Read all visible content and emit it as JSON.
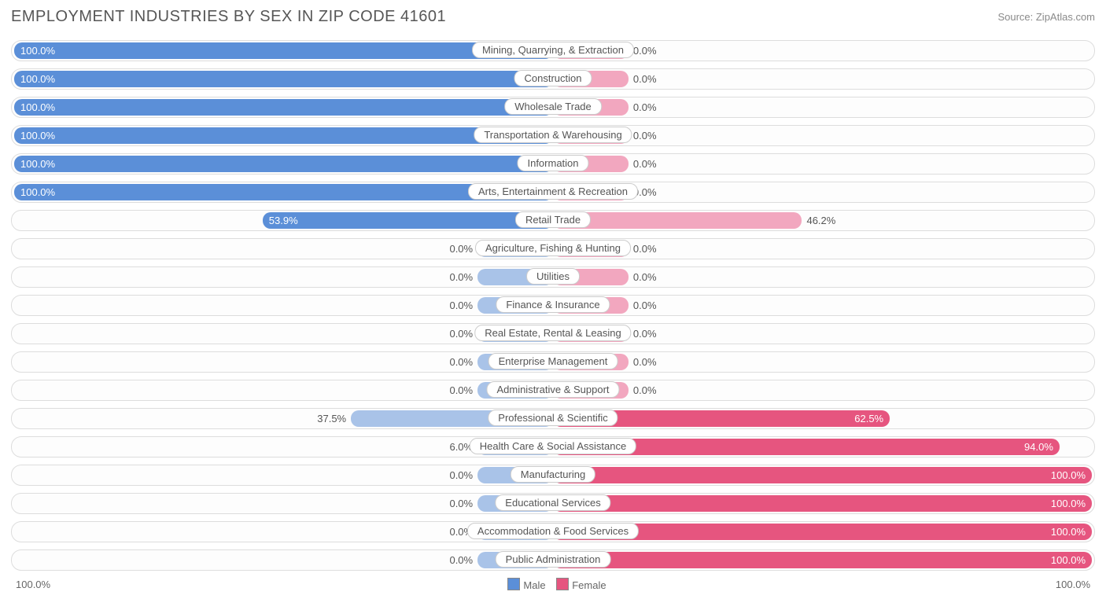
{
  "title": "EMPLOYMENT INDUSTRIES BY SEX IN ZIP CODE 41601",
  "source": "Source: ZipAtlas.com",
  "colors": {
    "male_fill": "#5b8fd8",
    "male_light": "#a9c3e8",
    "female_fill": "#e6557f",
    "female_light": "#f2a7bf",
    "row_border": "#dddddd",
    "text": "#555555",
    "title_text": "#565656",
    "bg": "#ffffff"
  },
  "axis": {
    "left": "100.0%",
    "right": "100.0%"
  },
  "legend": {
    "male": "Male",
    "female": "Female"
  },
  "min_bar_pct": 14,
  "rows": [
    {
      "label": "Mining, Quarrying, & Extraction",
      "male": 100.0,
      "female": 0.0
    },
    {
      "label": "Construction",
      "male": 100.0,
      "female": 0.0
    },
    {
      "label": "Wholesale Trade",
      "male": 100.0,
      "female": 0.0
    },
    {
      "label": "Transportation & Warehousing",
      "male": 100.0,
      "female": 0.0
    },
    {
      "label": "Information",
      "male": 100.0,
      "female": 0.0
    },
    {
      "label": "Arts, Entertainment & Recreation",
      "male": 100.0,
      "female": 0.0
    },
    {
      "label": "Retail Trade",
      "male": 53.9,
      "female": 46.2
    },
    {
      "label": "Agriculture, Fishing & Hunting",
      "male": 0.0,
      "female": 0.0
    },
    {
      "label": "Utilities",
      "male": 0.0,
      "female": 0.0
    },
    {
      "label": "Finance & Insurance",
      "male": 0.0,
      "female": 0.0
    },
    {
      "label": "Real Estate, Rental & Leasing",
      "male": 0.0,
      "female": 0.0
    },
    {
      "label": "Enterprise Management",
      "male": 0.0,
      "female": 0.0
    },
    {
      "label": "Administrative & Support",
      "male": 0.0,
      "female": 0.0
    },
    {
      "label": "Professional & Scientific",
      "male": 37.5,
      "female": 62.5
    },
    {
      "label": "Health Care & Social Assistance",
      "male": 6.0,
      "female": 94.0
    },
    {
      "label": "Manufacturing",
      "male": 0.0,
      "female": 100.0
    },
    {
      "label": "Educational Services",
      "male": 0.0,
      "female": 100.0
    },
    {
      "label": "Accommodation & Food Services",
      "male": 0.0,
      "female": 100.0
    },
    {
      "label": "Public Administration",
      "male": 0.0,
      "female": 100.0
    }
  ]
}
